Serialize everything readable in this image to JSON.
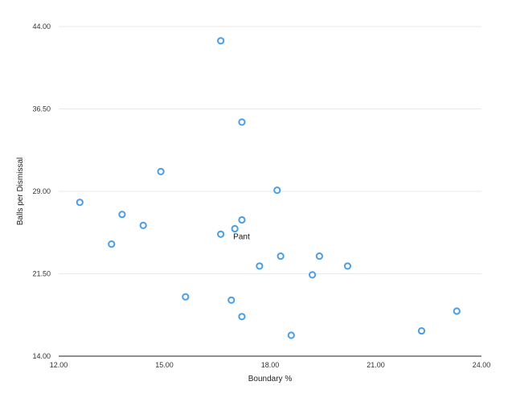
{
  "chart_data": {
    "type": "scatter",
    "title": "",
    "xlabel": "Boundary %",
    "ylabel": "Balls per Dismissal",
    "xlim": [
      12,
      24
    ],
    "ylim": [
      14,
      44
    ],
    "xticks": [
      12,
      15,
      18,
      21,
      24
    ],
    "yticks": [
      14,
      21.5,
      29,
      36.5,
      44
    ],
    "xtick_labels": [
      "12.00",
      "15.00",
      "18.00",
      "21.00",
      "24.00"
    ],
    "ytick_labels": [
      "14.00",
      "21.50",
      "29.00",
      "36.50",
      "44.00"
    ],
    "grid": true,
    "marker_color": "#4a9ee8",
    "points": [
      {
        "x": 16.6,
        "y": 42.7,
        "label": ""
      },
      {
        "x": 17.2,
        "y": 35.3,
        "label": ""
      },
      {
        "x": 14.9,
        "y": 30.8,
        "label": ""
      },
      {
        "x": 18.2,
        "y": 29.1,
        "label": ""
      },
      {
        "x": 12.6,
        "y": 28.0,
        "label": ""
      },
      {
        "x": 13.8,
        "y": 26.9,
        "label": ""
      },
      {
        "x": 17.2,
        "y": 26.4,
        "label": ""
      },
      {
        "x": 14.4,
        "y": 25.9,
        "label": ""
      },
      {
        "x": 17.0,
        "y": 25.6,
        "label": "Pant"
      },
      {
        "x": 16.6,
        "y": 25.1,
        "label": ""
      },
      {
        "x": 13.5,
        "y": 24.2,
        "label": ""
      },
      {
        "x": 18.3,
        "y": 23.1,
        "label": ""
      },
      {
        "x": 19.4,
        "y": 23.1,
        "label": ""
      },
      {
        "x": 17.7,
        "y": 22.2,
        "label": ""
      },
      {
        "x": 20.2,
        "y": 22.2,
        "label": ""
      },
      {
        "x": 19.2,
        "y": 21.4,
        "label": ""
      },
      {
        "x": 15.6,
        "y": 19.4,
        "label": ""
      },
      {
        "x": 16.9,
        "y": 19.1,
        "label": ""
      },
      {
        "x": 17.2,
        "y": 17.6,
        "label": ""
      },
      {
        "x": 23.3,
        "y": 18.1,
        "label": ""
      },
      {
        "x": 22.3,
        "y": 16.3,
        "label": ""
      },
      {
        "x": 18.6,
        "y": 15.9,
        "label": ""
      }
    ]
  }
}
